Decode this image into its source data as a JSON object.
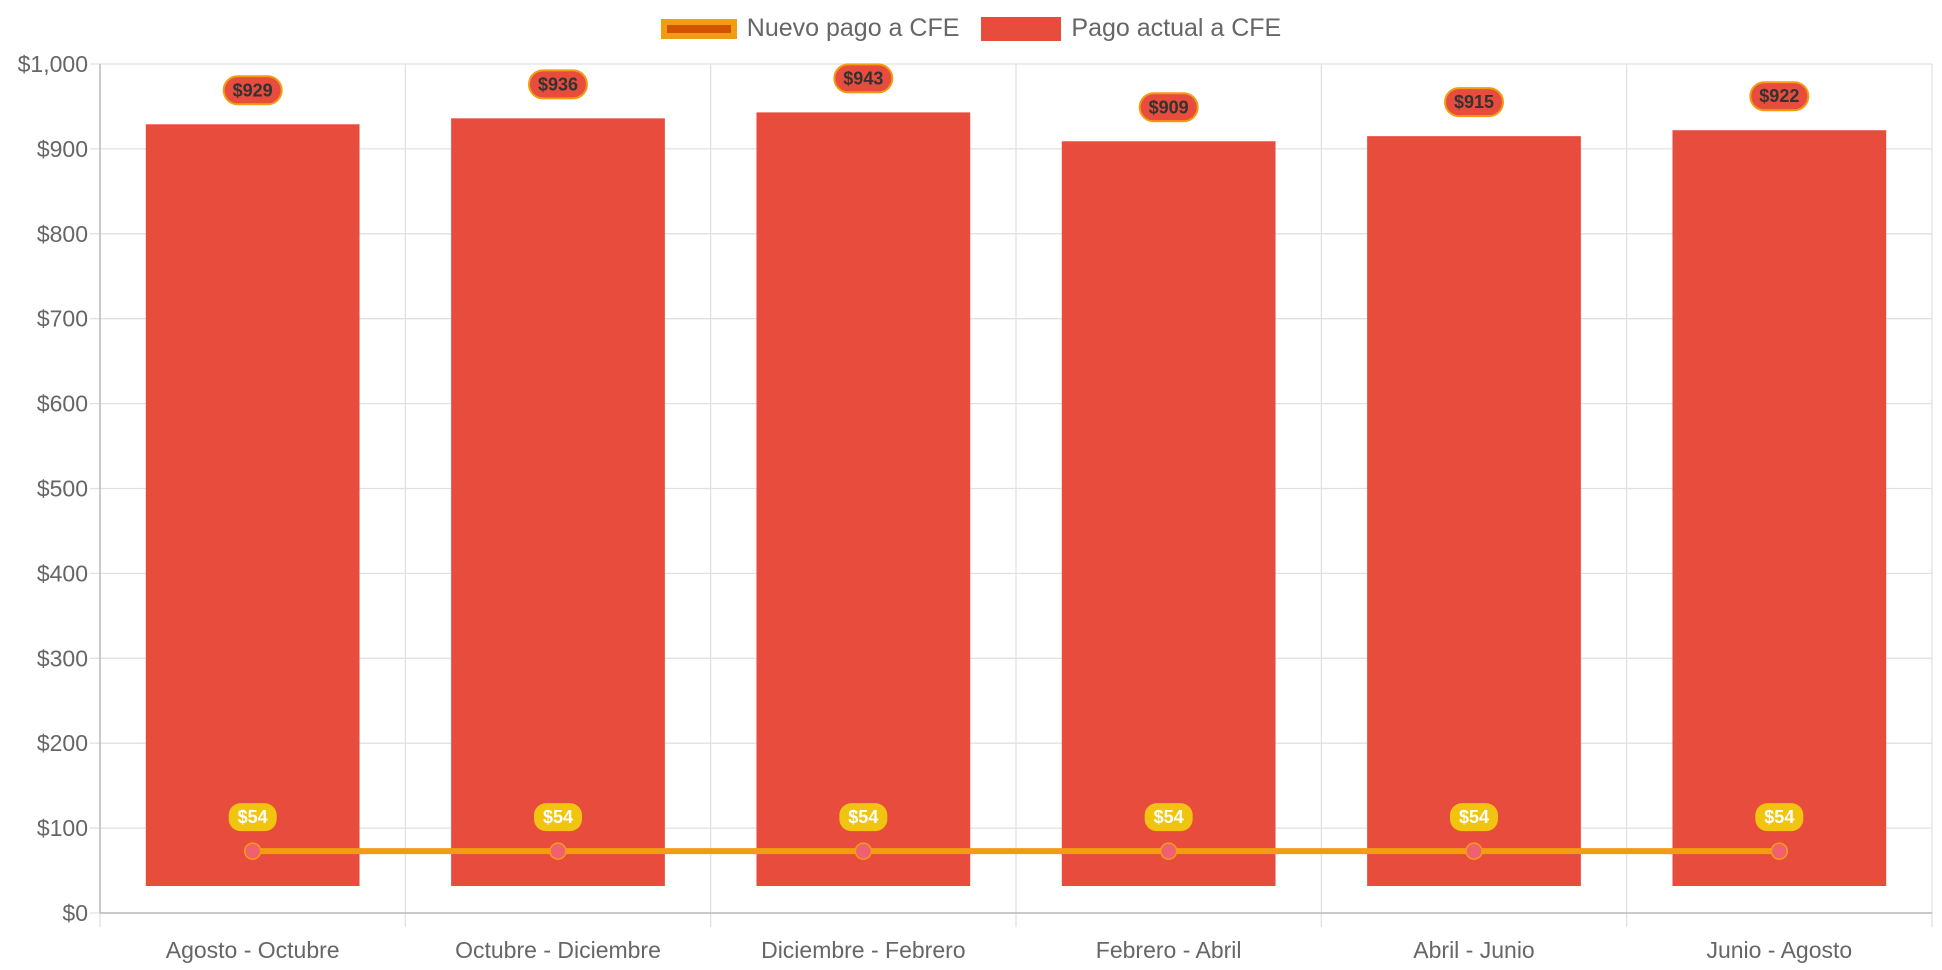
{
  "chart_data": {
    "type": "bar",
    "categories": [
      "Agosto - Octubre",
      "Octubre - Diciembre",
      "Diciembre - Febrero",
      "Febrero - Abril",
      "Abril - Junio",
      "Junio - Agosto"
    ],
    "series": [
      {
        "name": "Nuevo pago a CFE",
        "type": "line",
        "values": [
          54,
          54,
          54,
          54,
          54,
          54
        ],
        "labels": [
          "$54",
          "$54",
          "$54",
          "$54",
          "$54",
          "$54"
        ],
        "color": "#f39c12",
        "fill": "#d35400"
      },
      {
        "name": "Pago actual a CFE",
        "type": "bar",
        "values": [
          929,
          936,
          943,
          909,
          915,
          922
        ],
        "labels": [
          "$929",
          "$936",
          "$943",
          "$909",
          "$915",
          "$922"
        ],
        "color": "#e74c3c"
      }
    ],
    "ylim": [
      0,
      1000
    ],
    "yticks": [
      "$0",
      "$100",
      "$200",
      "$300",
      "$400",
      "$500",
      "$600",
      "$700",
      "$800",
      "$900",
      "$1,000"
    ],
    "grid": true,
    "legend_position": "top"
  },
  "colors": {
    "bar": "#e74c3c",
    "line": "#f39c12",
    "line_fill": "#d35400",
    "point": "#f06070",
    "bar_label_border": "#f39c12",
    "line_label_bg": "#f1c40f",
    "grid": "#e1e1e1",
    "axis": "#bbbbbb",
    "text": "#666666"
  }
}
